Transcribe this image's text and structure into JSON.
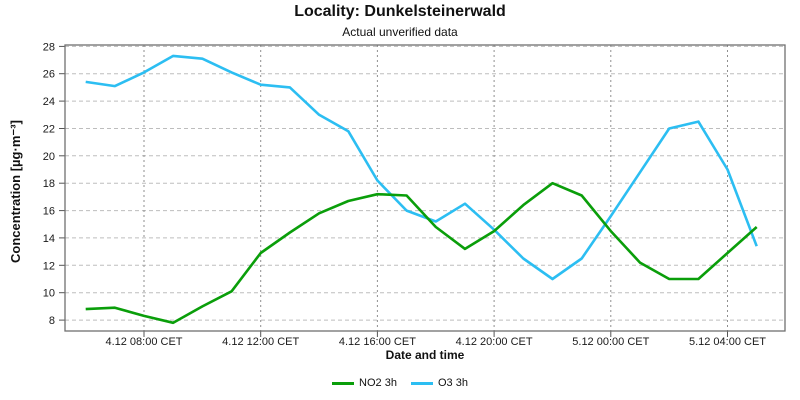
{
  "header": {
    "title": "Locality: Dunkelsteinerwald",
    "subtitle": "Actual unverified data"
  },
  "chart_data": {
    "type": "line",
    "title": "Locality: Dunkelsteinerwald",
    "subtitle": "Actual unverified data",
    "xlabel": "Date and time",
    "ylabel": "Concentration [µg·m⁻³]",
    "ylim": [
      7.2,
      28.1
    ],
    "grid": true,
    "legend_position": "bottom",
    "y_ticks": [
      28,
      26,
      24,
      22,
      20,
      18,
      16,
      14,
      12,
      10,
      8
    ],
    "x_ticks": [
      {
        "hour": 2,
        "label": "4.12 08:00 CET"
      },
      {
        "hour": 6,
        "label": "4.12 12:00 CET"
      },
      {
        "hour": 10,
        "label": "4.12 16:00 CET"
      },
      {
        "hour": 14,
        "label": "4.12 20:00 CET"
      },
      {
        "hour": 18,
        "label": "5.12 00:00 CET"
      },
      {
        "hour": 22,
        "label": "5.12 04:00 CET"
      }
    ],
    "categories": [
      "4.12 06:00",
      "4.12 07:00",
      "4.12 08:00",
      "4.12 09:00",
      "4.12 10:00",
      "4.12 11:00",
      "4.12 12:00",
      "4.12 13:00",
      "4.12 14:00",
      "4.12 15:00",
      "4.12 16:00",
      "4.12 17:00",
      "4.12 18:00",
      "4.12 19:00",
      "4.12 20:00",
      "4.12 21:00",
      "4.12 22:00",
      "4.12 23:00",
      "5.12 00:00",
      "5.12 01:00",
      "5.12 02:00",
      "5.12 03:00",
      "5.12 04:00",
      "5.12 05:00"
    ],
    "series": [
      {
        "name": "NO2 3h",
        "color": "#0a9e0a",
        "values": [
          8.8,
          8.9,
          8.3,
          7.8,
          9.0,
          10.1,
          12.9,
          14.4,
          15.8,
          16.7,
          17.2,
          17.1,
          14.8,
          13.2,
          14.5,
          16.4,
          18.0,
          17.1,
          14.5,
          12.2,
          11.0,
          11.0,
          12.9,
          14.8
        ]
      },
      {
        "name": "O3 3h",
        "color": "#2cbef2",
        "values": [
          25.4,
          25.1,
          26.1,
          27.3,
          27.1,
          26.1,
          25.2,
          25.0,
          23.0,
          21.8,
          18.2,
          16.0,
          15.2,
          16.5,
          14.6,
          12.5,
          11.0,
          12.5,
          15.6,
          18.8,
          22.0,
          22.5,
          19.0,
          13.4
        ]
      }
    ]
  },
  "colors": {
    "frame": "#707070",
    "grid_h": "#bdbdbd",
    "grid_v": "#8f8f8f",
    "tick": "#555555"
  }
}
